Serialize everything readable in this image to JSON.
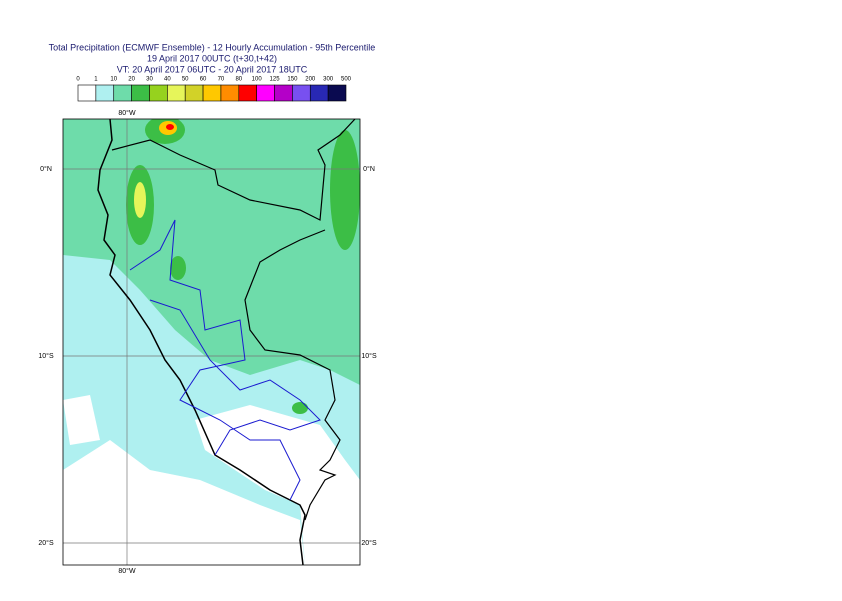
{
  "header": {
    "title": "Total Precipitation (ECMWF Ensemble) - 12 Hourly Accumulation - 95th Percentile",
    "line2": "19 April 2017 00UTC (t+30,t+42)",
    "line3": "VT: 20 April 2017 06UTC - 20 April 2017 18UTC"
  },
  "legend": {
    "thresholds": [
      0,
      1,
      10,
      20,
      30,
      40,
      50,
      60,
      70,
      80,
      100,
      125,
      150,
      200,
      300,
      500
    ],
    "colors": [
      "#ffffff",
      "#aff0f0",
      "#6edcaa",
      "#3cbe46",
      "#96d21e",
      "#e6f55a",
      "#d2d228",
      "#ffc800",
      "#ff8c00",
      "#ff0000",
      "#ff00ff",
      "#b400c8",
      "#7850f0",
      "#2828b4",
      "#0a0a50"
    ]
  },
  "map": {
    "lat_labels": [
      "0°N",
      "10°S",
      "20°S"
    ],
    "lon_labels": [
      "80°W"
    ]
  }
}
